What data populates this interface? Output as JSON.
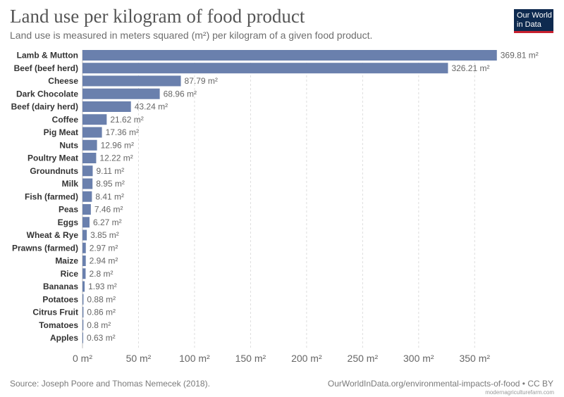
{
  "header": {
    "title": "Land use per kilogram of food product",
    "subtitle": "Land use is measured in meters squared (m²) per kilogram of a given food product."
  },
  "logo": {
    "line1": "Our World",
    "line2": "in Data"
  },
  "footer": {
    "source": "Source: Joseph Poore and Thomas Nemecek (2018).",
    "credit": "OurWorldInData.org/environmental-impacts-of-food • CC BY",
    "watermark": "modernagriculturefarm.com"
  },
  "colors": {
    "bar": "#6a80ad",
    "grid": "#dddddd",
    "axis_text": "#666666",
    "label_text": "#333333"
  },
  "chart_data": {
    "type": "bar",
    "orientation": "horizontal",
    "title": "Land use per kilogram of food product",
    "subtitle": "Land use is measured in meters squared (m²) per kilogram of a given food product.",
    "unit": "m²",
    "xlim": [
      0,
      375
    ],
    "xticks": [
      0,
      50,
      100,
      150,
      200,
      250,
      300,
      350
    ],
    "xtick_labels": [
      "0 m²",
      "50 m²",
      "100 m²",
      "150 m²",
      "200 m²",
      "250 m²",
      "300 m²",
      "350 m²"
    ],
    "grid": true,
    "categories": [
      "Lamb & Mutton",
      "Beef (beef herd)",
      "Cheese",
      "Dark Chocolate",
      "Beef (dairy herd)",
      "Coffee",
      "Pig Meat",
      "Nuts",
      "Poultry Meat",
      "Groundnuts",
      "Milk",
      "Fish (farmed)",
      "Peas",
      "Eggs",
      "Wheat & Rye",
      "Prawns (farmed)",
      "Maize",
      "Rice",
      "Bananas",
      "Potatoes",
      "Citrus Fruit",
      "Tomatoes",
      "Apples"
    ],
    "values": [
      369.81,
      326.21,
      87.79,
      68.96,
      43.24,
      21.62,
      17.36,
      12.96,
      12.22,
      9.11,
      8.95,
      8.41,
      7.46,
      6.27,
      3.85,
      2.97,
      2.94,
      2.8,
      1.93,
      0.88,
      0.86,
      0.8,
      0.63
    ],
    "value_labels": [
      "369.81 m²",
      "326.21 m²",
      "87.79 m²",
      "68.96 m²",
      "43.24 m²",
      "21.62 m²",
      "17.36 m²",
      "12.96 m²",
      "12.22 m²",
      "9.11 m²",
      "8.95 m²",
      "8.41 m²",
      "7.46 m²",
      "6.27 m²",
      "3.85 m²",
      "2.97 m²",
      "2.94 m²",
      "2.8 m²",
      "1.93 m²",
      "0.88 m²",
      "0.86 m²",
      "0.8 m²",
      "0.63 m²"
    ]
  }
}
